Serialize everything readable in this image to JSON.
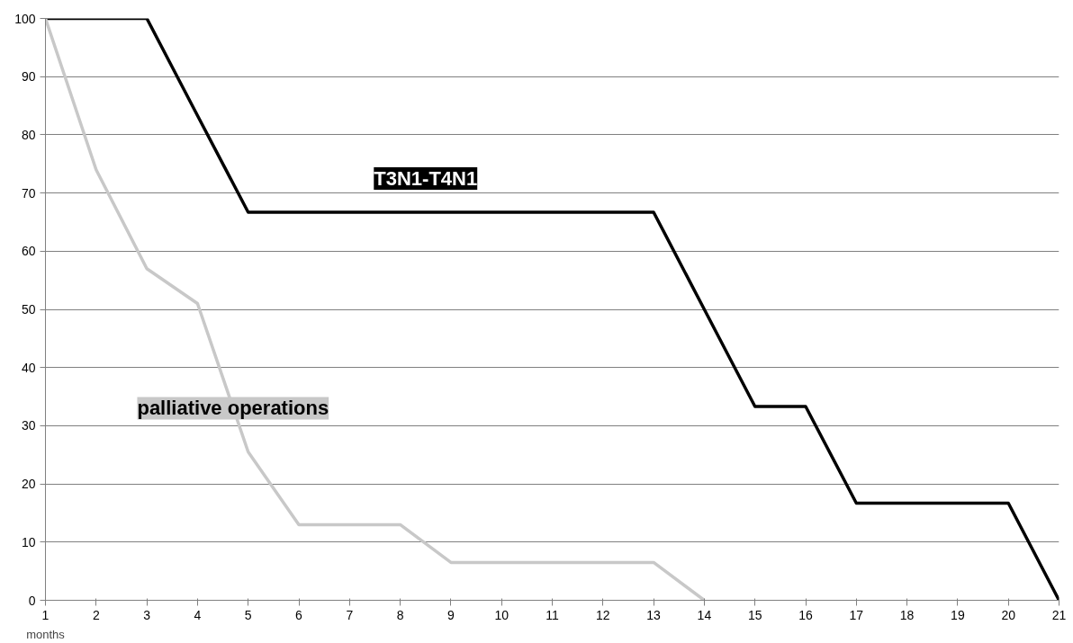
{
  "chart_data": {
    "type": "line",
    "xlabel": "months",
    "x": [
      1,
      2,
      3,
      4,
      5,
      6,
      7,
      8,
      9,
      10,
      11,
      12,
      13,
      14,
      15,
      16,
      17,
      18,
      19,
      20,
      21
    ],
    "series": [
      {
        "name": "T3N1-T4N1",
        "color": "#000000",
        "values": [
          100,
          100,
          100,
          83.3,
          66.7,
          66.7,
          66.7,
          66.7,
          66.7,
          66.7,
          66.7,
          66.7,
          66.7,
          50,
          33.3,
          33.3,
          16.7,
          16.7,
          16.7,
          16.7,
          0
        ]
      },
      {
        "name": "palliative operations",
        "color": "#c8c8c8",
        "x": [
          1,
          2,
          3,
          4,
          5,
          6,
          7,
          8,
          9,
          10,
          11,
          12,
          13,
          14
        ],
        "values": [
          100,
          74,
          57,
          51,
          25.5,
          13,
          13,
          13,
          6.5,
          6.5,
          6.5,
          6.5,
          6.5,
          0
        ]
      }
    ],
    "xlim": [
      1,
      21
    ],
    "xticks": [
      1,
      2,
      3,
      4,
      5,
      6,
      7,
      8,
      9,
      10,
      11,
      12,
      13,
      14,
      15,
      16,
      17,
      18,
      19,
      20,
      21
    ],
    "ylim": [
      0,
      100
    ],
    "yticks": [
      0,
      10,
      20,
      30,
      40,
      50,
      60,
      70,
      80,
      90,
      100
    ],
    "grid": "y",
    "marker": "none",
    "line_style": "solid"
  }
}
